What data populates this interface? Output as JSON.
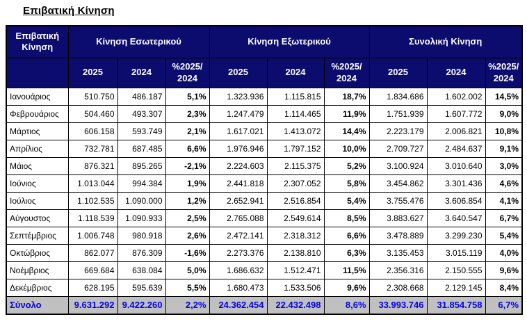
{
  "page_title": "Επιβατική Κίνηση",
  "colors": {
    "header_bg": "#0c0c6e",
    "header_text": "#ffffff",
    "total_bg": "#c0c0c0",
    "total_text": "#0000ee",
    "border": "#000000"
  },
  "table": {
    "corner_header": "Επιβατική Κίνηση",
    "groups": [
      {
        "label": "Κίνηση Εσωτερικού"
      },
      {
        "label": "Κίνηση Εξωτερικού"
      },
      {
        "label": "Συνολική Κίνηση"
      }
    ],
    "sub_headers": [
      "2025",
      "2024",
      "%2025/ 2024"
    ],
    "rows": [
      {
        "month": "Ιανουάριος",
        "values": [
          "510.750",
          "486.187",
          "5,1%",
          "1.323.936",
          "1.115.815",
          "18,7%",
          "1.834.686",
          "1.602.002",
          "14,5%"
        ]
      },
      {
        "month": "Φεβρουάριος",
        "values": [
          "504.460",
          "493.307",
          "2,3%",
          "1.247.479",
          "1.114.465",
          "11,9%",
          "1.751.939",
          "1.607.772",
          "9,0%"
        ]
      },
      {
        "month": "Μάρτιος",
        "values": [
          "606.158",
          "593.749",
          "2,1%",
          "1.617.021",
          "1.413.072",
          "14,4%",
          "2.223.179",
          "2.006.821",
          "10,8%"
        ]
      },
      {
        "month": "Απρίλιος",
        "values": [
          "732.781",
          "687.485",
          "6,6%",
          "1.976.946",
          "1.797.152",
          "10,0%",
          "2.709.727",
          "2.484.637",
          "9,1%"
        ]
      },
      {
        "month": "Μάιος",
        "values": [
          "876.321",
          "895.265",
          "-2,1%",
          "2.224.603",
          "2.115.375",
          "5,2%",
          "3.100.924",
          "3.010.640",
          "3,0%"
        ]
      },
      {
        "month": "Ιούνιος",
        "values": [
          "1.013.044",
          "994.384",
          "1,9%",
          "2.441.818",
          "2.307.052",
          "5,8%",
          "3.454.862",
          "3.301.436",
          "4,6%"
        ]
      },
      {
        "month": "Ιούλιος",
        "values": [
          "1.102.535",
          "1.090.000",
          "1,2%",
          "2.652.941",
          "2.516.854",
          "5,4%",
          "3.755.476",
          "3.606.854",
          "4,1%"
        ]
      },
      {
        "month": "Αύγουστος",
        "values": [
          "1.118.539",
          "1.090.933",
          "2,5%",
          "2.765.088",
          "2.549.614",
          "8,5%",
          "3.883.627",
          "3.640.547",
          "6,7%"
        ]
      },
      {
        "month": "Σεπτέμβριος",
        "values": [
          "1.006.748",
          "980.918",
          "2,6%",
          "2.472.141",
          "2.318.312",
          "6,6%",
          "3.478.889",
          "3.299.230",
          "5,4%"
        ]
      },
      {
        "month": "Οκτώβριος",
        "values": [
          "862.077",
          "876.309",
          "-1,6%",
          "2.273.376",
          "2.138.810",
          "6,3%",
          "3.135.453",
          "3.015.119",
          "4,0%"
        ]
      },
      {
        "month": "Νοέμβριος",
        "values": [
          "669.684",
          "638.084",
          "5,0%",
          "1.686.632",
          "1.512.471",
          "11,5%",
          "2.356.316",
          "2.150.555",
          "9,6%"
        ]
      },
      {
        "month": "Δεκέμβριος",
        "values": [
          "628.195",
          "595.639",
          "5,5%",
          "1.680.473",
          "1.533.506",
          "9,6%",
          "2.308.668",
          "2.129.145",
          "8,4%"
        ]
      }
    ],
    "total": {
      "label": "Σύνολο",
      "values": [
        "9.631.292",
        "9.422.260",
        "2,2%",
        "24.362.454",
        "22.432.498",
        "8,6%",
        "33.993.746",
        "31.854.758",
        "6,7%"
      ]
    }
  }
}
